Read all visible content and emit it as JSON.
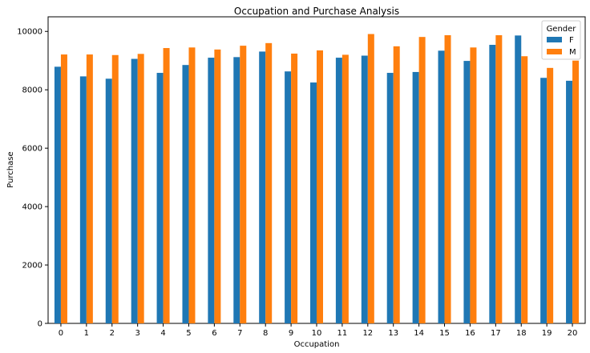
{
  "chart_data": {
    "type": "bar",
    "title": "Occupation and Purchase Analysis",
    "xlabel": "Occupation",
    "ylabel": "Purchase",
    "categories": [
      "0",
      "1",
      "2",
      "3",
      "4",
      "5",
      "6",
      "7",
      "8",
      "9",
      "10",
      "11",
      "12",
      "13",
      "14",
      "15",
      "16",
      "17",
      "18",
      "19",
      "20"
    ],
    "series": [
      {
        "name": "F",
        "color": "#1f77b4",
        "values": [
          8790,
          8460,
          8380,
          9060,
          8580,
          8850,
          9100,
          9120,
          9310,
          8630,
          8250,
          9100,
          9170,
          8580,
          8610,
          9340,
          8990,
          9540,
          9860,
          8410,
          8310
        ]
      },
      {
        "name": "M",
        "color": "#ff7f0e",
        "values": [
          9210,
          9210,
          9190,
          9230,
          9430,
          9450,
          9380,
          9510,
          9600,
          9240,
          9350,
          9200,
          9910,
          9490,
          9810,
          9870,
          9450,
          9870,
          9150,
          8750,
          9000
        ]
      }
    ],
    "ylim": [
      0,
      10500
    ],
    "yticks": [
      0,
      2000,
      4000,
      6000,
      8000,
      10000
    ],
    "legend": {
      "title": "Gender",
      "placement": "top-right"
    },
    "grid": false
  }
}
